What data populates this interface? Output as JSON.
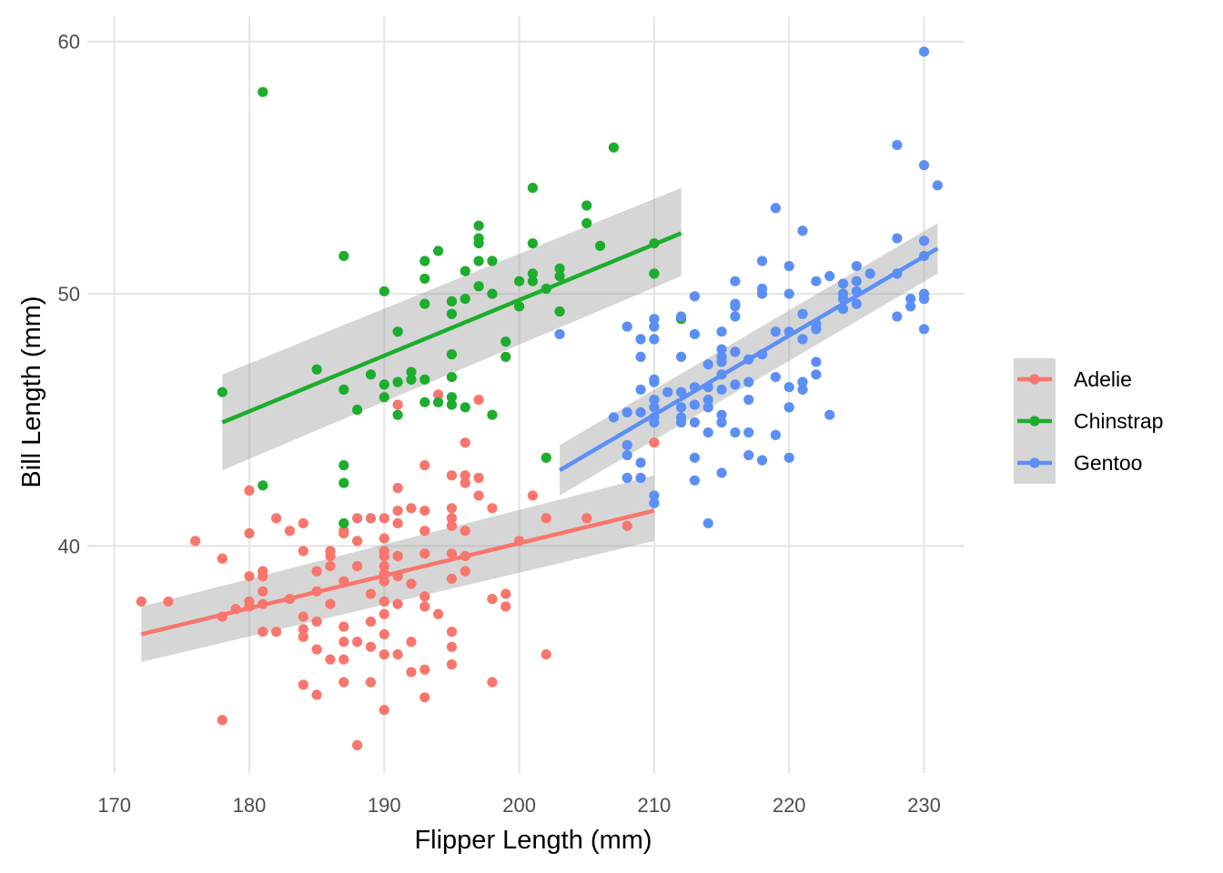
{
  "chart_data": {
    "type": "scatter",
    "xlabel": "Flipper Length (mm)",
    "ylabel": "Bill Length (mm)",
    "xlim": [
      168,
      233
    ],
    "ylim": [
      31,
      61
    ],
    "x_ticks": [
      170,
      180,
      190,
      200,
      210,
      220,
      230
    ],
    "y_ticks": [
      40,
      50,
      60
    ],
    "grid": true,
    "legend_position": "right",
    "band_color": "#999999",
    "series": [
      {
        "name": "Adelie",
        "color": "#f8766d",
        "points": [
          [
            172,
            37.8
          ],
          [
            174,
            37.8
          ],
          [
            176,
            40.2
          ],
          [
            178,
            39.5
          ],
          [
            178,
            37.2
          ],
          [
            178,
            33.1
          ],
          [
            179,
            37.5
          ],
          [
            180,
            42.2
          ],
          [
            180,
            40.5
          ],
          [
            180,
            38.8
          ],
          [
            180,
            37.8
          ],
          [
            180,
            37.6
          ],
          [
            181,
            39.0
          ],
          [
            181,
            38.8
          ],
          [
            181,
            38.2
          ],
          [
            181,
            37.7
          ],
          [
            181,
            36.6
          ],
          [
            182,
            41.1
          ],
          [
            182,
            36.6
          ],
          [
            183,
            40.6
          ],
          [
            183,
            37.9
          ],
          [
            184,
            40.9
          ],
          [
            184,
            39.8
          ],
          [
            184,
            37.2
          ],
          [
            184,
            36.7
          ],
          [
            184,
            36.4
          ],
          [
            184,
            34.5
          ],
          [
            185,
            39.0
          ],
          [
            185,
            38.2
          ],
          [
            185,
            37.0
          ],
          [
            185,
            35.9
          ],
          [
            185,
            34.1
          ],
          [
            186,
            39.8
          ],
          [
            186,
            39.6
          ],
          [
            186,
            39.2
          ],
          [
            186,
            37.7
          ],
          [
            186,
            35.5
          ],
          [
            187,
            40.6
          ],
          [
            187,
            40.5
          ],
          [
            187,
            38.6
          ],
          [
            187,
            36.8
          ],
          [
            187,
            36.2
          ],
          [
            187,
            35.5
          ],
          [
            187,
            34.6
          ],
          [
            188,
            41.1
          ],
          [
            188,
            40.2
          ],
          [
            188,
            39.2
          ],
          [
            188,
            36.2
          ],
          [
            188,
            32.1
          ],
          [
            189,
            41.1
          ],
          [
            189,
            38.1
          ],
          [
            189,
            37.0
          ],
          [
            189,
            36.0
          ],
          [
            189,
            34.6
          ],
          [
            190,
            41.1
          ],
          [
            190,
            40.3
          ],
          [
            190,
            39.8
          ],
          [
            190,
            39.6
          ],
          [
            190,
            39.2
          ],
          [
            190,
            38.9
          ],
          [
            190,
            38.6
          ],
          [
            190,
            37.8
          ],
          [
            190,
            37.3
          ],
          [
            190,
            36.5
          ],
          [
            190,
            35.7
          ],
          [
            190,
            33.5
          ],
          [
            191,
            45.6
          ],
          [
            191,
            42.3
          ],
          [
            191,
            41.4
          ],
          [
            191,
            40.9
          ],
          [
            191,
            39.6
          ],
          [
            191,
            38.8
          ],
          [
            191,
            37.7
          ],
          [
            191,
            35.7
          ],
          [
            192,
            41.5
          ],
          [
            192,
            38.5
          ],
          [
            192,
            36.2
          ],
          [
            192,
            35.0
          ],
          [
            193,
            43.2
          ],
          [
            193,
            41.4
          ],
          [
            193,
            40.6
          ],
          [
            193,
            39.7
          ],
          [
            193,
            38.0
          ],
          [
            193,
            37.6
          ],
          [
            193,
            35.1
          ],
          [
            193,
            34.0
          ],
          [
            194,
            46.0
          ],
          [
            194,
            37.3
          ],
          [
            195,
            42.8
          ],
          [
            195,
            41.5
          ],
          [
            195,
            41.1
          ],
          [
            195,
            40.8
          ],
          [
            195,
            39.7
          ],
          [
            195,
            38.7
          ],
          [
            195,
            36.6
          ],
          [
            195,
            36.0
          ],
          [
            195,
            35.3
          ],
          [
            196,
            44.1
          ],
          [
            196,
            42.8
          ],
          [
            196,
            42.5
          ],
          [
            196,
            40.6
          ],
          [
            196,
            39.6
          ],
          [
            196,
            39.0
          ],
          [
            197,
            45.8
          ],
          [
            197,
            42.7
          ],
          [
            197,
            42.0
          ],
          [
            198,
            41.5
          ],
          [
            198,
            37.9
          ],
          [
            198,
            34.6
          ],
          [
            199,
            38.1
          ],
          [
            199,
            37.6
          ],
          [
            200,
            40.2
          ],
          [
            201,
            42.0
          ],
          [
            202,
            41.1
          ],
          [
            202,
            35.7
          ],
          [
            205,
            41.1
          ],
          [
            208,
            40.8
          ],
          [
            210,
            44.1
          ]
        ]
      },
      {
        "name": "Chinstrap",
        "color": "#1cad2d",
        "points": [
          [
            178,
            46.1
          ],
          [
            181,
            58.0
          ],
          [
            181,
            42.4
          ],
          [
            185,
            47.0
          ],
          [
            187,
            51.5
          ],
          [
            187,
            46.2
          ],
          [
            187,
            43.2
          ],
          [
            187,
            42.5
          ],
          [
            187,
            40.9
          ],
          [
            188,
            45.4
          ],
          [
            189,
            46.8
          ],
          [
            190,
            50.1
          ],
          [
            190,
            46.4
          ],
          [
            190,
            45.9
          ],
          [
            191,
            48.5
          ],
          [
            191,
            46.5
          ],
          [
            191,
            45.2
          ],
          [
            192,
            46.9
          ],
          [
            192,
            46.6
          ],
          [
            193,
            51.3
          ],
          [
            193,
            50.6
          ],
          [
            193,
            49.6
          ],
          [
            193,
            46.6
          ],
          [
            193,
            45.7
          ],
          [
            194,
            51.7
          ],
          [
            194,
            45.7
          ],
          [
            195,
            49.7
          ],
          [
            195,
            49.2
          ],
          [
            195,
            47.6
          ],
          [
            195,
            46.7
          ],
          [
            195,
            45.9
          ],
          [
            195,
            45.6
          ],
          [
            196,
            50.9
          ],
          [
            196,
            49.8
          ],
          [
            196,
            45.5
          ],
          [
            197,
            52.7
          ],
          [
            197,
            52.2
          ],
          [
            197,
            52.0
          ],
          [
            197,
            51.3
          ],
          [
            197,
            50.3
          ],
          [
            198,
            51.3
          ],
          [
            198,
            50.0
          ],
          [
            198,
            45.2
          ],
          [
            199,
            48.1
          ],
          [
            199,
            47.5
          ],
          [
            200,
            50.5
          ],
          [
            200,
            49.5
          ],
          [
            201,
            54.2
          ],
          [
            201,
            52.0
          ],
          [
            201,
            50.8
          ],
          [
            201,
            50.5
          ],
          [
            202,
            50.2
          ],
          [
            202,
            43.5
          ],
          [
            203,
            51.0
          ],
          [
            203,
            50.7
          ],
          [
            203,
            49.3
          ],
          [
            205,
            53.5
          ],
          [
            205,
            52.8
          ],
          [
            206,
            51.9
          ],
          [
            207,
            55.8
          ],
          [
            210,
            52.0
          ],
          [
            210,
            50.8
          ],
          [
            210,
            49.0
          ],
          [
            212,
            49.0
          ]
        ]
      },
      {
        "name": "Gentoo",
        "color": "#5b8ff7",
        "points": [
          [
            203,
            48.4
          ],
          [
            207,
            45.1
          ],
          [
            208,
            48.7
          ],
          [
            208,
            45.3
          ],
          [
            208,
            44.0
          ],
          [
            208,
            43.6
          ],
          [
            208,
            42.7
          ],
          [
            209,
            48.2
          ],
          [
            209,
            47.5
          ],
          [
            209,
            46.2
          ],
          [
            209,
            45.3
          ],
          [
            209,
            43.3
          ],
          [
            209,
            42.7
          ],
          [
            210,
            49.0
          ],
          [
            210,
            48.7
          ],
          [
            210,
            48.2
          ],
          [
            210,
            46.6
          ],
          [
            210,
            46.5
          ],
          [
            210,
            45.8
          ],
          [
            210,
            45.5
          ],
          [
            210,
            45.1
          ],
          [
            210,
            44.9
          ],
          [
            210,
            42.0
          ],
          [
            210,
            41.7
          ],
          [
            211,
            46.1
          ],
          [
            212,
            49.1
          ],
          [
            212,
            47.5
          ],
          [
            212,
            46.1
          ],
          [
            212,
            45.5
          ],
          [
            212,
            45.1
          ],
          [
            212,
            44.9
          ],
          [
            213,
            49.9
          ],
          [
            213,
            48.4
          ],
          [
            213,
            46.3
          ],
          [
            213,
            45.6
          ],
          [
            213,
            44.9
          ],
          [
            213,
            43.5
          ],
          [
            213,
            42.6
          ],
          [
            214,
            47.2
          ],
          [
            214,
            46.3
          ],
          [
            214,
            45.8
          ],
          [
            214,
            45.5
          ],
          [
            214,
            44.5
          ],
          [
            214,
            40.9
          ],
          [
            215,
            48.5
          ],
          [
            215,
            47.8
          ],
          [
            215,
            47.5
          ],
          [
            215,
            47.3
          ],
          [
            215,
            46.8
          ],
          [
            215,
            46.2
          ],
          [
            215,
            45.2
          ],
          [
            215,
            44.9
          ],
          [
            215,
            42.9
          ],
          [
            216,
            50.5
          ],
          [
            216,
            49.6
          ],
          [
            216,
            49.5
          ],
          [
            216,
            49.1
          ],
          [
            216,
            47.7
          ],
          [
            216,
            46.4
          ],
          [
            216,
            44.5
          ],
          [
            217,
            47.4
          ],
          [
            217,
            46.5
          ],
          [
            217,
            45.8
          ],
          [
            217,
            44.5
          ],
          [
            217,
            43.6
          ],
          [
            218,
            51.3
          ],
          [
            218,
            50.2
          ],
          [
            218,
            50.0
          ],
          [
            218,
            47.6
          ],
          [
            218,
            43.4
          ],
          [
            219,
            53.4
          ],
          [
            219,
            48.5
          ],
          [
            219,
            46.7
          ],
          [
            219,
            44.4
          ],
          [
            220,
            51.1
          ],
          [
            220,
            50.0
          ],
          [
            220,
            48.5
          ],
          [
            220,
            46.3
          ],
          [
            220,
            45.5
          ],
          [
            220,
            43.5
          ],
          [
            221,
            52.5
          ],
          [
            221,
            49.2
          ],
          [
            221,
            48.2
          ],
          [
            221,
            46.5
          ],
          [
            221,
            46.2
          ],
          [
            222,
            50.5
          ],
          [
            222,
            48.8
          ],
          [
            222,
            48.6
          ],
          [
            222,
            47.3
          ],
          [
            222,
            46.8
          ],
          [
            223,
            50.7
          ],
          [
            223,
            45.2
          ],
          [
            224,
            50.4
          ],
          [
            224,
            50.0
          ],
          [
            224,
            49.8
          ],
          [
            224,
            49.4
          ],
          [
            225,
            51.1
          ],
          [
            225,
            50.5
          ],
          [
            225,
            50.1
          ],
          [
            225,
            49.6
          ],
          [
            226,
            50.8
          ],
          [
            228,
            55.9
          ],
          [
            228,
            52.2
          ],
          [
            228,
            50.8
          ],
          [
            228,
            49.1
          ],
          [
            229,
            49.8
          ],
          [
            229,
            49.5
          ],
          [
            230,
            59.6
          ],
          [
            230,
            55.1
          ],
          [
            230,
            52.1
          ],
          [
            230,
            51.5
          ],
          [
            230,
            50.0
          ],
          [
            230,
            49.8
          ],
          [
            230,
            48.6
          ],
          [
            231,
            54.3
          ]
        ]
      }
    ],
    "trend_lines": [
      {
        "series": "Adelie",
        "x": [
          172,
          210
        ],
        "y": [
          36.5,
          41.4
        ],
        "band_lower": [
          35.4,
          40.2
        ],
        "band_upper": [
          37.6,
          42.8
        ]
      },
      {
        "series": "Chinstrap",
        "x": [
          178,
          212
        ],
        "y": [
          44.9,
          52.4
        ],
        "band_lower": [
          43.0,
          50.7
        ],
        "band_upper": [
          46.8,
          54.2
        ]
      },
      {
        "series": "Gentoo",
        "x": [
          203,
          231
        ],
        "y": [
          43.0,
          51.8
        ],
        "band_lower": [
          42.0,
          50.8
        ],
        "band_upper": [
          44.0,
          52.8
        ]
      }
    ]
  }
}
